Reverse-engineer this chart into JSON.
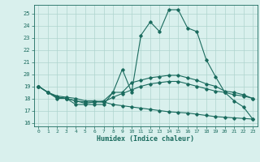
{
  "xlabel": "Humidex (Indice chaleur)",
  "background_color": "#d9f0ed",
  "grid_color": "#aed4ce",
  "line_color": "#1a6b5e",
  "xlim": [
    -0.5,
    23.5
  ],
  "ylim": [
    15.7,
    25.7
  ],
  "yticks": [
    16,
    17,
    18,
    19,
    20,
    21,
    22,
    23,
    24,
    25
  ],
  "xticks": [
    0,
    1,
    2,
    3,
    4,
    5,
    6,
    7,
    8,
    9,
    10,
    11,
    12,
    13,
    14,
    15,
    16,
    17,
    18,
    19,
    20,
    21,
    22,
    23
  ],
  "curves": [
    {
      "x": [
        0,
        1,
        2,
        3,
        4,
        5,
        6,
        7,
        8,
        9,
        10,
        11,
        12,
        13,
        14,
        15,
        16,
        17,
        18,
        19,
        20,
        21,
        22,
        23
      ],
      "y": [
        19.0,
        18.5,
        18.0,
        18.0,
        17.5,
        17.5,
        17.5,
        17.5,
        18.5,
        20.4,
        18.5,
        23.2,
        24.3,
        23.5,
        25.3,
        25.3,
        23.8,
        23.5,
        21.2,
        19.8,
        18.5,
        17.8,
        17.3,
        16.3
      ]
    },
    {
      "x": [
        0,
        1,
        2,
        3,
        4,
        5,
        6,
        7,
        8,
        9,
        10,
        11,
        12,
        13,
        14,
        15,
        16,
        17,
        18,
        19,
        20,
        21,
        22,
        23
      ],
      "y": [
        19.0,
        18.5,
        18.1,
        18.0,
        17.8,
        17.7,
        17.7,
        17.8,
        18.5,
        18.5,
        19.3,
        19.5,
        19.7,
        19.8,
        19.9,
        19.9,
        19.7,
        19.5,
        19.2,
        19.0,
        18.6,
        18.5,
        18.3,
        18.0
      ]
    },
    {
      "x": [
        0,
        1,
        2,
        3,
        4,
        5,
        6,
        7,
        8,
        9,
        10,
        11,
        12,
        13,
        14,
        15,
        16,
        17,
        18,
        19,
        20,
        21,
        22,
        23
      ],
      "y": [
        19.0,
        18.5,
        18.1,
        18.0,
        17.8,
        17.6,
        17.7,
        17.7,
        18.1,
        18.4,
        18.7,
        19.0,
        19.2,
        19.3,
        19.4,
        19.4,
        19.2,
        19.0,
        18.8,
        18.6,
        18.5,
        18.3,
        18.2,
        18.0
      ]
    },
    {
      "x": [
        0,
        1,
        2,
        3,
        4,
        5,
        6,
        7,
        8,
        9,
        10,
        11,
        12,
        13,
        14,
        15,
        16,
        17,
        18,
        19,
        20,
        21,
        22,
        23
      ],
      "y": [
        19.0,
        18.5,
        18.2,
        18.1,
        18.0,
        17.8,
        17.8,
        17.7,
        17.5,
        17.4,
        17.3,
        17.2,
        17.1,
        17.0,
        16.9,
        16.85,
        16.8,
        16.7,
        16.6,
        16.5,
        16.45,
        16.4,
        16.35,
        16.3
      ]
    }
  ]
}
